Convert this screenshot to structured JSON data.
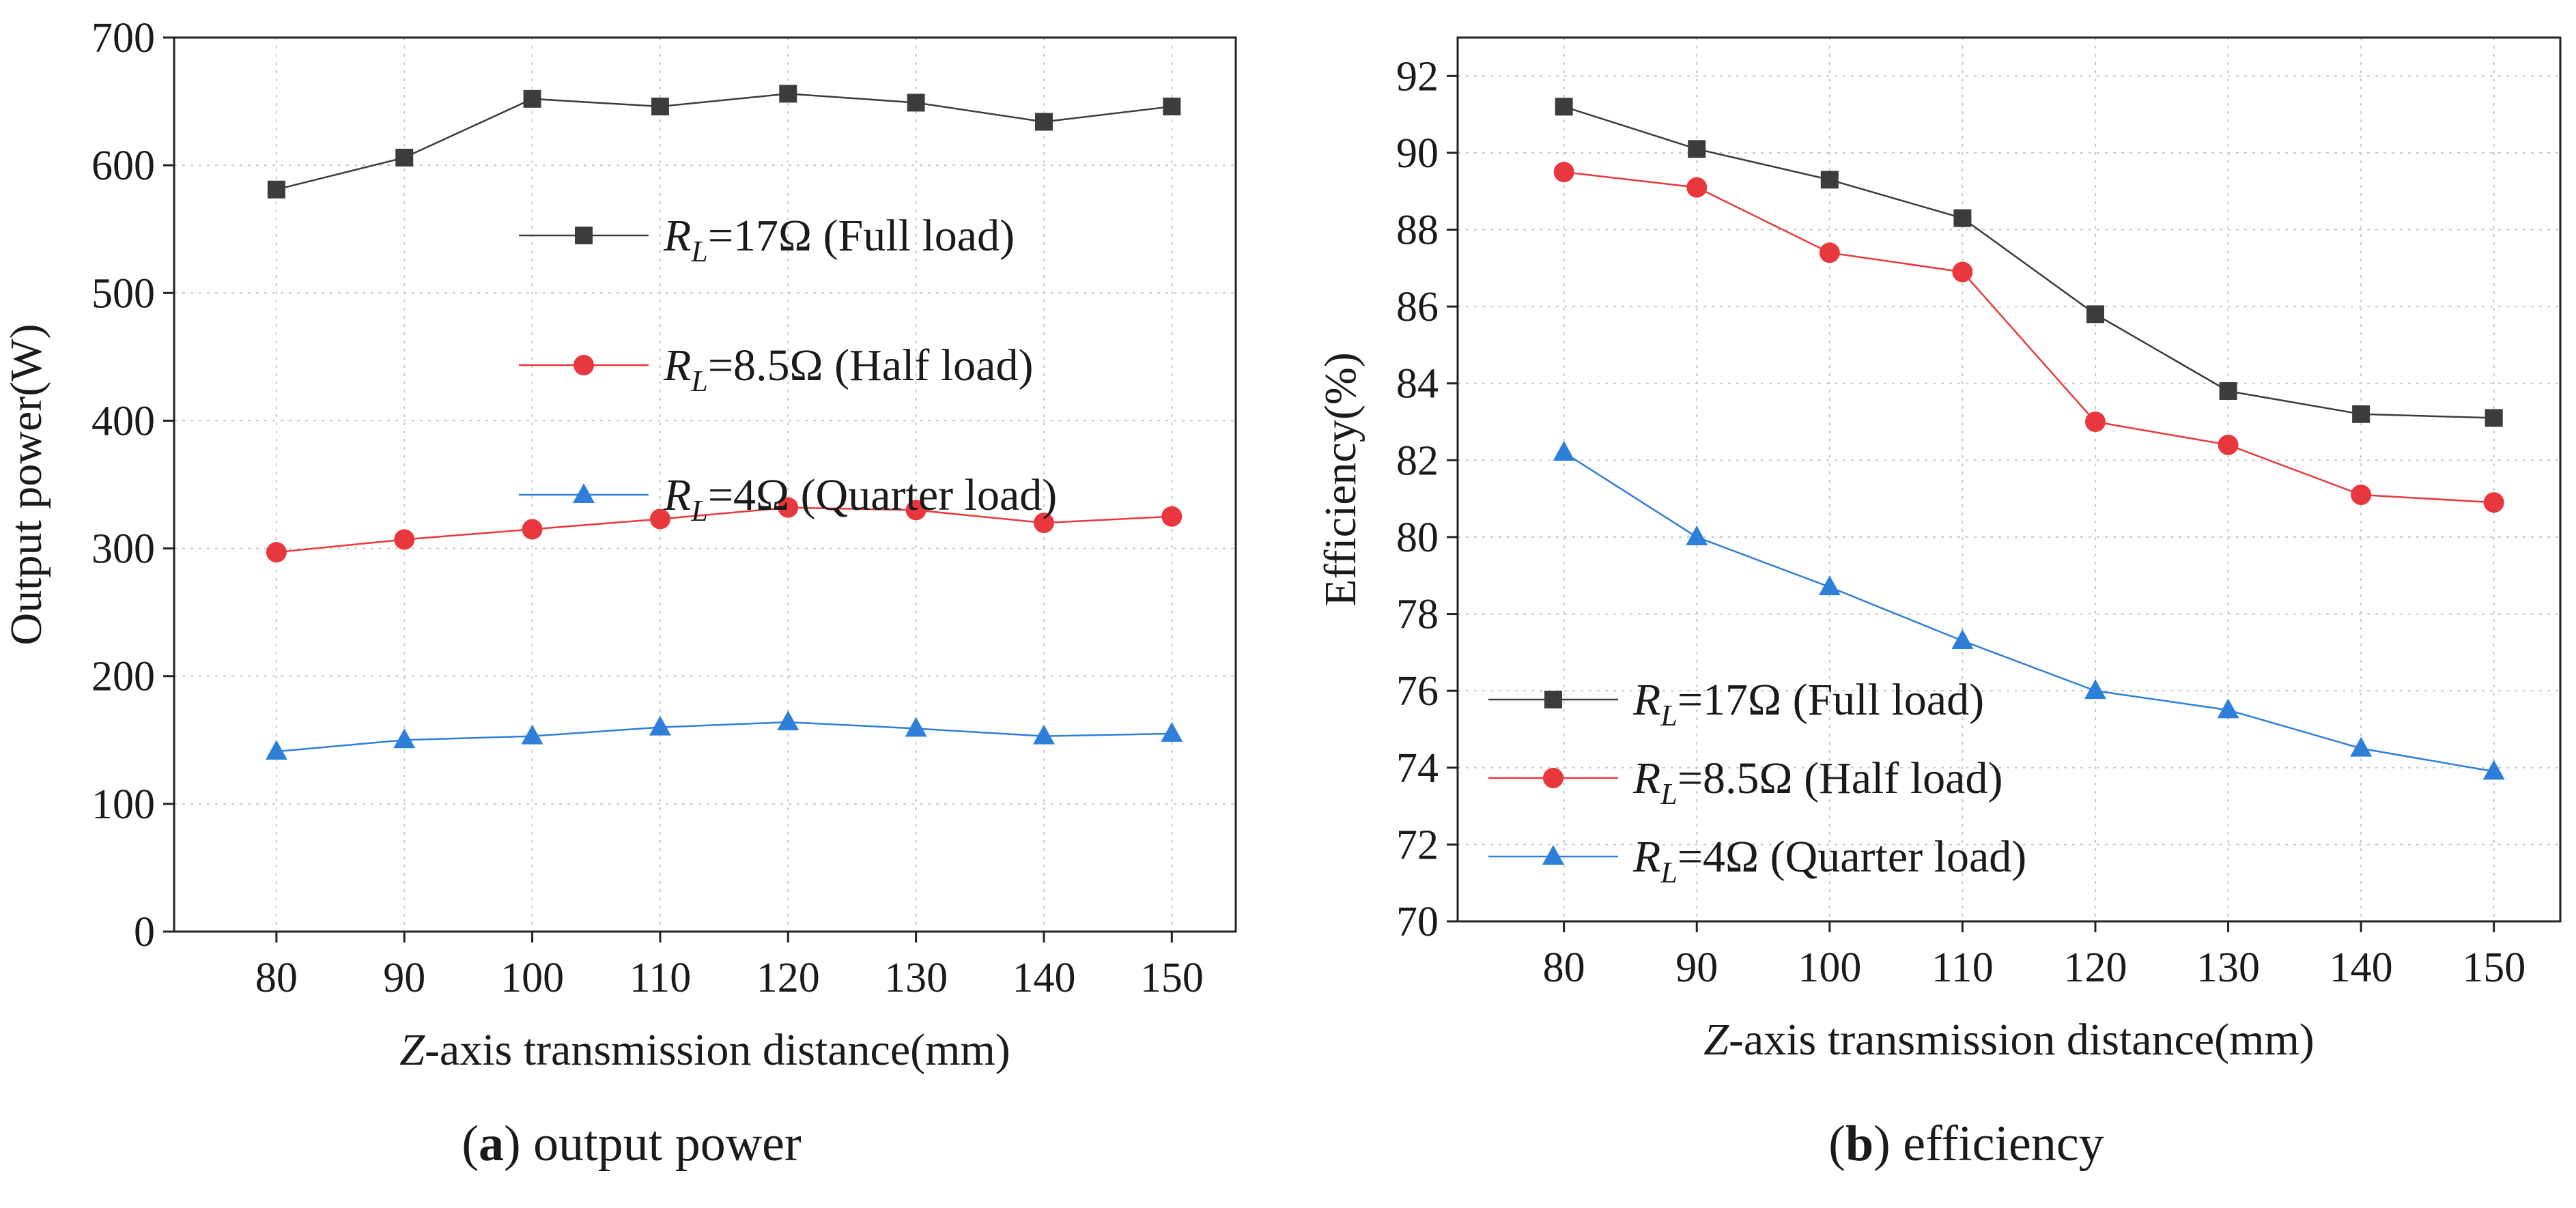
{
  "chart_data": [
    {
      "type": "line",
      "title": "",
      "caption": {
        "letter": "a",
        "open": "(",
        "close": ")",
        "text": " output power"
      },
      "xlabel": {
        "italic": "Z",
        "rest": "-axis transmission distance(mm)"
      },
      "ylabel": "Output power(W)",
      "x": [
        80,
        90,
        100,
        110,
        120,
        130,
        140,
        150
      ],
      "xlim": [
        72,
        155
      ],
      "ylim": [
        0,
        700
      ],
      "xticks": [
        "80",
        "90",
        "100",
        "110",
        "120",
        "130",
        "140",
        "150"
      ],
      "yticks": [
        "0",
        "100",
        "200",
        "300",
        "400",
        "500",
        "600",
        "700"
      ],
      "grid": true,
      "legend_position": "center-right",
      "series": [
        {
          "name": "Full load",
          "label_main": "R",
          "label_sub": "L",
          "label_rest": "=17Ω (Full load)",
          "marker": "square",
          "color": "#3c3c3c",
          "values": [
            581,
            606,
            652,
            646,
            656,
            649,
            634,
            646
          ]
        },
        {
          "name": "Half load",
          "label_main": "R",
          "label_sub": "L",
          "label_rest": "=8.5Ω (Half load)",
          "marker": "circle",
          "color": "#e8383d",
          "values": [
            297,
            307,
            315,
            323,
            332,
            330,
            320,
            325
          ]
        },
        {
          "name": "Quarter load",
          "label_main": "R",
          "label_sub": "L",
          "label_rest": "=4Ω (Quarter load)",
          "marker": "triangle",
          "color": "#2e7fd9",
          "values": [
            141,
            150,
            153,
            160,
            164,
            159,
            153,
            155
          ]
        }
      ]
    },
    {
      "type": "line",
      "title": "",
      "caption": {
        "letter": "b",
        "open": "(",
        "close": ")",
        "text": " efficiency"
      },
      "xlabel": {
        "italic": "Z",
        "rest": "-axis transmission distance(mm)"
      },
      "ylabel": "Efficiency(%)",
      "x": [
        80,
        90,
        100,
        110,
        120,
        130,
        140,
        150
      ],
      "xlim": [
        72,
        155
      ],
      "ylim": [
        70,
        93
      ],
      "xticks": [
        "80",
        "90",
        "100",
        "110",
        "120",
        "130",
        "140",
        "150"
      ],
      "yticks": [
        "70",
        "72",
        "74",
        "76",
        "78",
        "80",
        "82",
        "84",
        "86",
        "88",
        "90",
        "92"
      ],
      "grid": true,
      "legend_position": "bottom-left",
      "series": [
        {
          "name": "Full load",
          "label_main": "R",
          "label_sub": "L",
          "label_rest": "=17Ω (Full load)",
          "marker": "square",
          "color": "#3c3c3c",
          "values": [
            91.2,
            90.1,
            89.3,
            88.3,
            85.8,
            83.8,
            83.2,
            83.1
          ]
        },
        {
          "name": "Half load",
          "label_main": "R",
          "label_sub": "L",
          "label_rest": "=8.5Ω (Half load)",
          "marker": "circle",
          "color": "#e8383d",
          "values": [
            89.5,
            89.1,
            87.4,
            86.9,
            83.0,
            82.4,
            81.1,
            80.9
          ]
        },
        {
          "name": "Quarter load",
          "label_main": "R",
          "label_sub": "L",
          "label_rest": "=4Ω (Quarter load)",
          "marker": "triangle",
          "color": "#2e7fd9",
          "values": [
            82.2,
            80.0,
            78.7,
            77.3,
            76.0,
            75.5,
            74.5,
            73.9
          ]
        }
      ]
    }
  ]
}
